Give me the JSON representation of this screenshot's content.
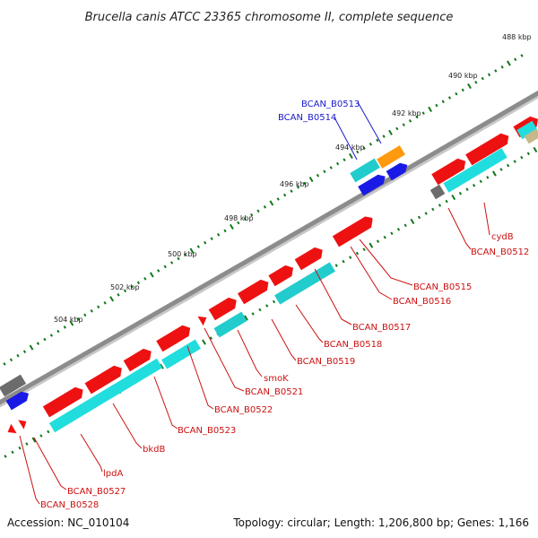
{
  "title": "Brucella canis ATCC 23365 chromosome II, complete sequence",
  "footer": {
    "accession": "Accession: NC_010104",
    "summary": "Topology: circular; Length: 1,206,800 bp; Genes: 1,166"
  },
  "colors": {
    "backbone": "#8c8c8c",
    "forward_cds": "#ee1111",
    "reverse_cds": "#22dddd",
    "other_cds": "#1a1ae6",
    "orange_cds": "#ff9910",
    "grey_cds": "#6c6c6c",
    "tan_cds": "#c7b88a",
    "scale_ticks": "#11771a",
    "forward_label": "#cc1111",
    "reverse_label": "#1a1acc"
  },
  "scale": {
    "unit": "kbp",
    "labels": [
      "488 kbp",
      "490 kbp",
      "492 kbp",
      "494 kbp",
      "496 kbp",
      "498 kbp",
      "500 kbp",
      "502 kbp",
      "504 kbp"
    ]
  },
  "gene_labels": [
    {
      "name": "BCAN_B0513",
      "strand": "other"
    },
    {
      "name": "BCAN_B0514",
      "strand": "other"
    },
    {
      "name": "cydB",
      "strand": "forward"
    },
    {
      "name": "BCAN_B0512",
      "strand": "forward"
    },
    {
      "name": "BCAN_B0515",
      "strand": "forward"
    },
    {
      "name": "BCAN_B0516",
      "strand": "forward"
    },
    {
      "name": "BCAN_B0517",
      "strand": "forward"
    },
    {
      "name": "BCAN_B0518",
      "strand": "forward"
    },
    {
      "name": "BCAN_B0519",
      "strand": "forward"
    },
    {
      "name": "smoK",
      "strand": "forward"
    },
    {
      "name": "BCAN_B0521",
      "strand": "forward"
    },
    {
      "name": "BCAN_B0522",
      "strand": "forward"
    },
    {
      "name": "BCAN_B0523",
      "strand": "forward"
    },
    {
      "name": "bkdB",
      "strand": "forward"
    },
    {
      "name": "lpdA",
      "strand": "forward"
    },
    {
      "name": "BCAN_B0527",
      "strand": "forward"
    },
    {
      "name": "BCAN_B0528",
      "strand": "forward"
    }
  ]
}
